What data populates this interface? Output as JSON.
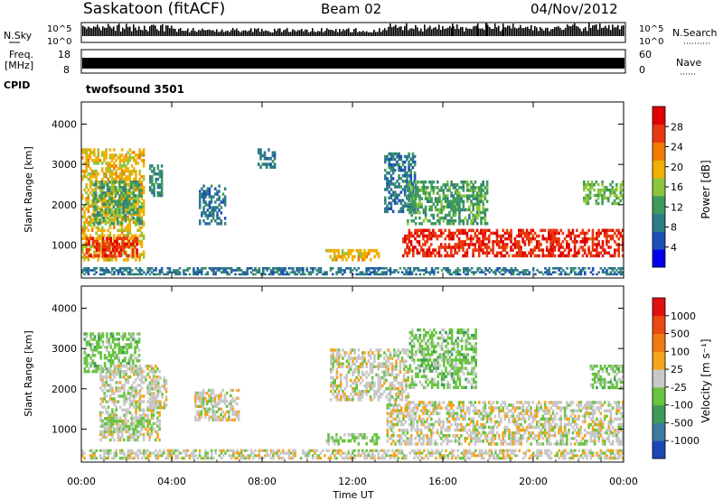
{
  "header": {
    "title": "Saskatoon (fitACF)",
    "beam": "Beam 02",
    "date": "04/Nov/2012"
  },
  "status": {
    "nsky_label": "N.Sky",
    "nsearch_label": "N.Search",
    "noise_ticks": [
      "10^5",
      "10^0"
    ],
    "freq_label_1": "Freq.",
    "freq_label_2": "[MHz]",
    "freq_ticks": [
      "18",
      "8"
    ],
    "nave_label": "Nave",
    "nave_ticks": [
      "60",
      "0"
    ],
    "cpid_label": "CPID",
    "cpid_name": "twofsound 3501"
  },
  "axes": {
    "ylabel": "Slant Range [km]",
    "xlabel": "Time UT",
    "yticks": [
      "4000",
      "3000",
      "2000",
      "1000"
    ],
    "xticks": [
      "00:00",
      "04:00",
      "08:00",
      "12:00",
      "16:00",
      "20:00",
      "00:00"
    ]
  },
  "colorbars": {
    "power": {
      "label": "Power [dB]",
      "ticks": [
        "28",
        "24",
        "20",
        "16",
        "12",
        "8",
        "4"
      ],
      "colors": [
        "#0000ee",
        "#1d4fb7",
        "#2e7a88",
        "#3e9a5c",
        "#8bc53f",
        "#f0b000",
        "#f07a00",
        "#e83a10",
        "#e00000"
      ]
    },
    "velocity": {
      "label": "Velocity [m s⁻¹]",
      "ticks": [
        "1000",
        "500",
        "100",
        "25",
        "-25",
        "-100",
        "-500",
        "-1000"
      ],
      "colors": [
        "#1c46b4",
        "#3c7aa0",
        "#3d9a5a",
        "#68c440",
        "#c8c8c8",
        "#f5a41c",
        "#f07a10",
        "#e84a10",
        "#e01010"
      ]
    }
  },
  "chart_data": [
    {
      "type": "heatmap",
      "name": "power",
      "xlabel": "Time UT",
      "ylabel": "Slant Range [km]",
      "xlim": [
        0,
        24
      ],
      "ylim": [
        180,
        4550
      ],
      "colorbar_label": "Power [dB]",
      "colorbar_range": [
        0,
        30
      ],
      "regions": [
        {
          "t": [
            0.0,
            2.8
          ],
          "r": [
            600,
            3400
          ],
          "value": 18
        },
        {
          "t": [
            0.2,
            2.5
          ],
          "r": [
            700,
            1200
          ],
          "value": 26
        },
        {
          "t": [
            0.5,
            2.7
          ],
          "r": [
            1500,
            2600
          ],
          "value": 12
        },
        {
          "t": [
            3.0,
            3.6
          ],
          "r": [
            2200,
            3000
          ],
          "value": 10
        },
        {
          "t": [
            5.2,
            6.4
          ],
          "r": [
            1500,
            2500
          ],
          "value": 8
        },
        {
          "t": [
            7.8,
            8.6
          ],
          "r": [
            2900,
            3400
          ],
          "value": 8
        },
        {
          "t": [
            10.8,
            13.2
          ],
          "r": [
            600,
            900
          ],
          "value": 18
        },
        {
          "t": [
            13.4,
            14.8
          ],
          "r": [
            1800,
            3300
          ],
          "value": 8
        },
        {
          "t": [
            14.2,
            24.0
          ],
          "r": [
            700,
            1400
          ],
          "value": 26
        },
        {
          "t": [
            14.4,
            18.0
          ],
          "r": [
            1500,
            2600
          ],
          "value": 12
        },
        {
          "t": [
            22.2,
            24.0
          ],
          "r": [
            2000,
            2600
          ],
          "value": 14
        },
        {
          "t": [
            0.0,
            24.0
          ],
          "r": [
            250,
            450
          ],
          "value": 8
        }
      ]
    },
    {
      "type": "heatmap",
      "name": "velocity",
      "xlabel": "Time UT",
      "ylabel": "Slant Range [km]",
      "xlim": [
        0,
        24
      ],
      "ylim": [
        180,
        4550
      ],
      "colorbar_label": "Velocity [m s⁻¹]",
      "colorbar_range": [
        -1000,
        1000
      ],
      "regions": [
        {
          "t": [
            0.1,
            2.6
          ],
          "r": [
            2400,
            3400
          ],
          "value": -200
        },
        {
          "t": [
            0.8,
            3.5
          ],
          "r": [
            700,
            2600
          ],
          "value": 0
        },
        {
          "t": [
            1.0,
            2.8
          ],
          "r": [
            900,
            1300
          ],
          "value": -150
        },
        {
          "t": [
            3.0,
            3.8
          ],
          "r": [
            1500,
            2300
          ],
          "value": 0
        },
        {
          "t": [
            5.0,
            7.0
          ],
          "r": [
            1200,
            2000
          ],
          "value": 0
        },
        {
          "t": [
            10.8,
            13.2
          ],
          "r": [
            600,
            900
          ],
          "value": -150
        },
        {
          "t": [
            11.0,
            14.5
          ],
          "r": [
            1700,
            3000
          ],
          "value": 0
        },
        {
          "t": [
            13.5,
            24.0
          ],
          "r": [
            600,
            1700
          ],
          "value": 0
        },
        {
          "t": [
            14.5,
            17.5
          ],
          "r": [
            2000,
            3500
          ],
          "value": -200
        },
        {
          "t": [
            22.5,
            24.0
          ],
          "r": [
            2000,
            2600
          ],
          "value": -200
        },
        {
          "t": [
            0.0,
            24.0
          ],
          "r": [
            250,
            500
          ],
          "value": 0
        }
      ]
    }
  ]
}
